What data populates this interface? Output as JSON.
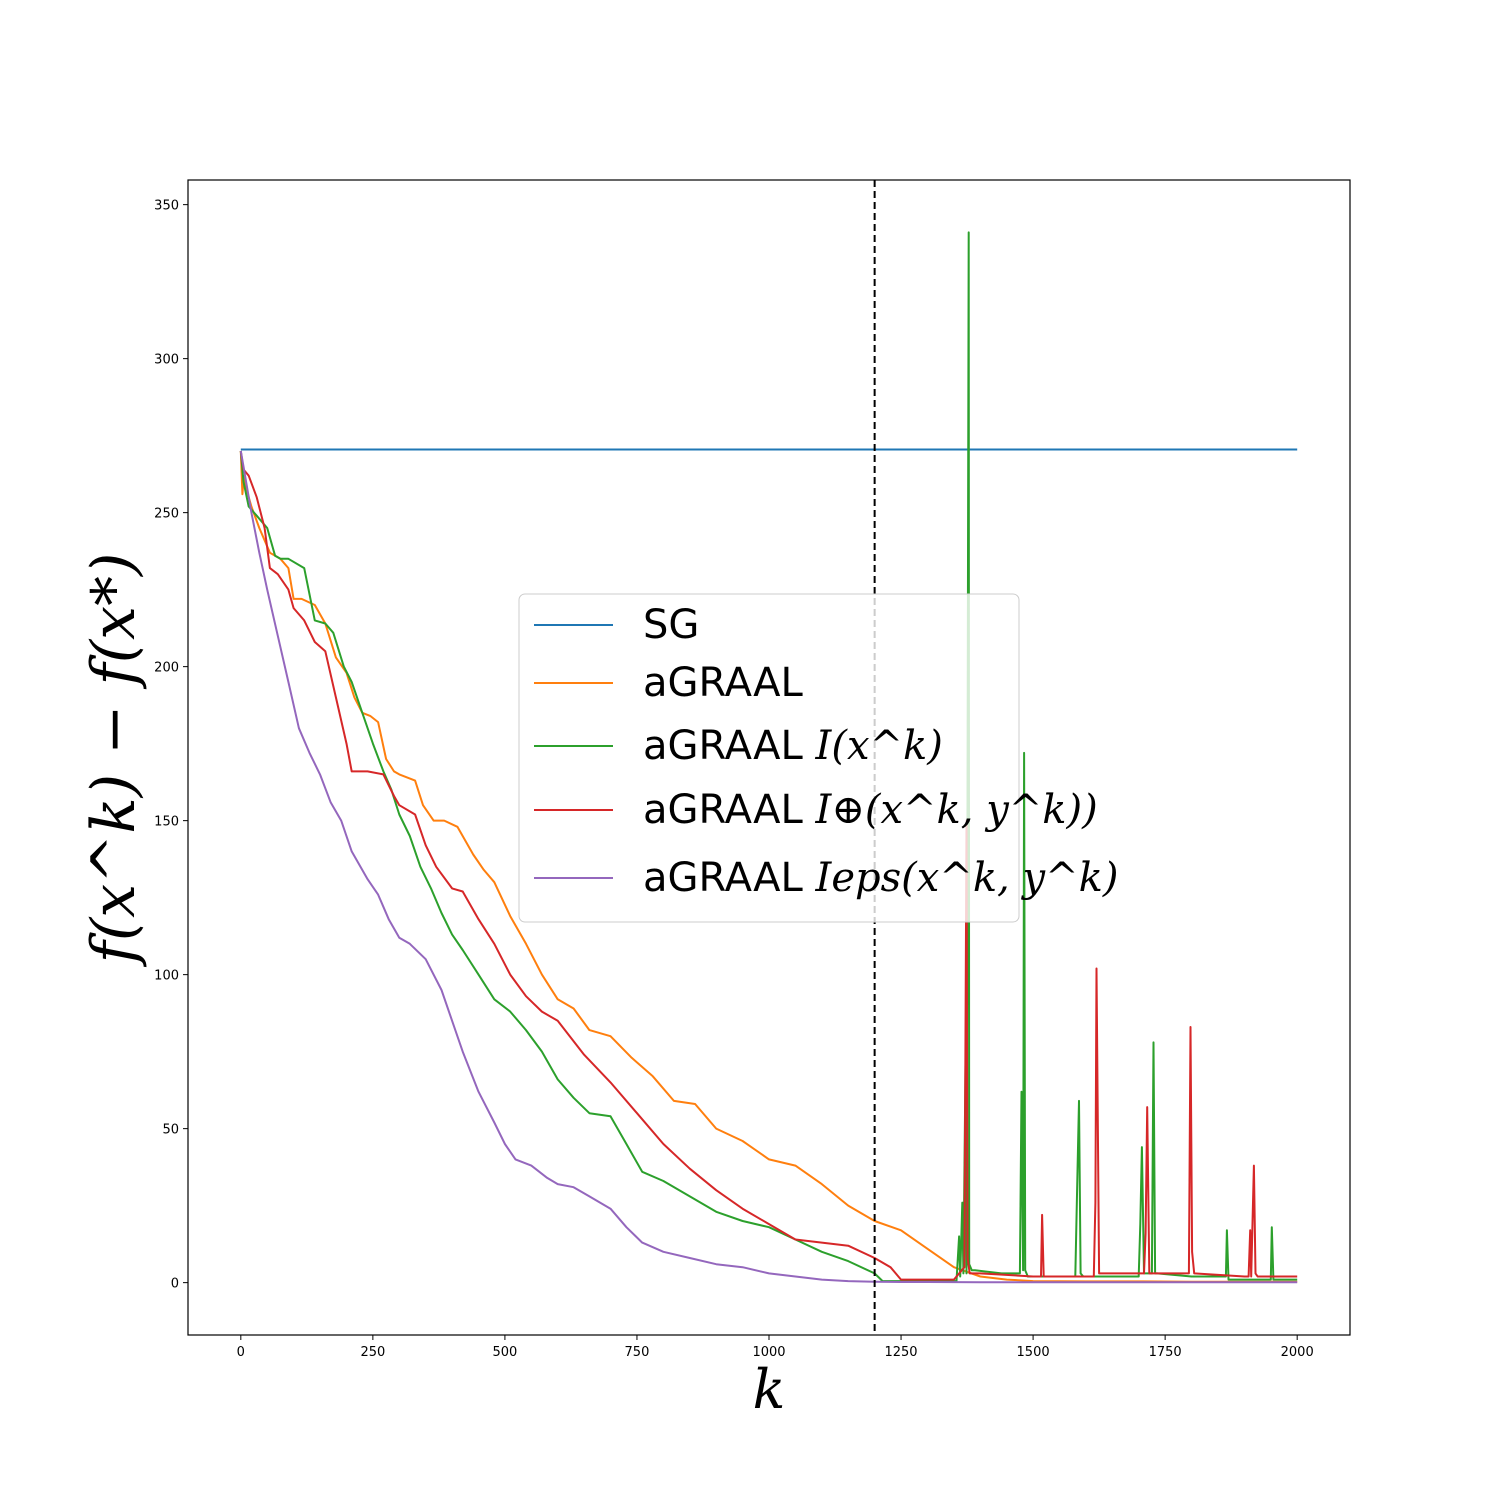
{
  "chart_data": {
    "type": "line",
    "title": "",
    "xlabel": "k",
    "ylabel": "f(x^k) − f(x*)",
    "xlim": [
      -100,
      2100
    ],
    "ylim": [
      -17,
      358
    ],
    "xticks": [
      0,
      250,
      500,
      750,
      1000,
      1250,
      1500,
      1750,
      2000
    ],
    "yticks": [
      0,
      50,
      100,
      150,
      200,
      250,
      300,
      350
    ],
    "xtick_labels": [
      "0",
      "250",
      "500",
      "750",
      "1000",
      "1250",
      "1500",
      "1750",
      "2000"
    ],
    "ytick_labels": [
      "0",
      "50",
      "100",
      "150",
      "200",
      "250",
      "300",
      "350"
    ],
    "vline": {
      "x": 1200,
      "style": "dashed",
      "color": "#000000"
    },
    "legend": {
      "placement": "center"
    },
    "series": [
      {
        "name": "SG",
        "legend": "SG",
        "color": "#1f77b4",
        "x": [
          0,
          2000
        ],
        "y": [
          270.5,
          270.5
        ]
      },
      {
        "name": "aGRAAL",
        "legend": "aGRAAL",
        "color": "#ff7f0e",
        "x": [
          0,
          3,
          6,
          10,
          20,
          35,
          55,
          75,
          90,
          100,
          115,
          140,
          160,
          180,
          200,
          215,
          230,
          245,
          260,
          275,
          290,
          300,
          330,
          345,
          365,
          385,
          410,
          440,
          460,
          480,
          510,
          540,
          570,
          600,
          630,
          660,
          700,
          740,
          780,
          820,
          860,
          900,
          950,
          1000,
          1050,
          1100,
          1150,
          1200,
          1250,
          1300,
          1350,
          1400,
          1450,
          1500,
          1600,
          1700,
          1800,
          1900,
          2000
        ],
        "y": [
          270,
          256,
          262,
          258,
          252,
          245,
          237,
          235,
          232,
          222,
          222,
          220,
          214,
          203,
          198,
          190,
          185,
          184,
          182,
          170,
          166,
          165,
          163,
          155,
          150,
          150,
          148,
          139,
          134,
          130,
          119,
          110,
          100,
          92,
          89,
          82,
          80,
          73,
          67,
          59,
          58,
          50,
          46,
          40,
          38,
          32,
          25,
          20,
          17,
          11,
          5,
          2,
          1,
          0.5,
          0.4,
          0.4,
          0.3,
          0.3,
          0.3
        ]
      },
      {
        "name": "aGRAAL I(x^k)",
        "legend": "aGRAAL ",
        "legend_math": "I(x^k)",
        "color": "#2ca02c",
        "x": [
          0,
          5,
          15,
          30,
          50,
          65,
          75,
          90,
          120,
          140,
          160,
          175,
          195,
          210,
          230,
          250,
          270,
          285,
          300,
          320,
          340,
          360,
          380,
          400,
          420,
          450,
          480,
          510,
          540,
          570,
          600,
          630,
          660,
          700,
          730,
          760,
          800,
          850,
          900,
          950,
          1000,
          1050,
          1100,
          1150,
          1200,
          1215,
          1250,
          1300,
          1355,
          1360,
          1362,
          1366,
          1368,
          1372,
          1374,
          1378,
          1379,
          1384,
          1390,
          1440,
          1475,
          1478,
          1481,
          1483,
          1485,
          1490,
          1540,
          1580,
          1583,
          1587,
          1590,
          1595,
          1700,
          1703,
          1706,
          1710,
          1725,
          1728,
          1731,
          1735,
          1800,
          1865,
          1867,
          1870,
          1950,
          1952,
          1955,
          2000
        ],
        "y": [
          270,
          260,
          252,
          249,
          245,
          236,
          235,
          235,
          232,
          215,
          214,
          211,
          200,
          195,
          185,
          175,
          166,
          160,
          152,
          145,
          135,
          128,
          120,
          113,
          108,
          100,
          92,
          88,
          82,
          75,
          66,
          60,
          55,
          54,
          45,
          36,
          33,
          28,
          23,
          20,
          18,
          14,
          10,
          7,
          3,
          0.5,
          0.5,
          0.5,
          0.5,
          15,
          2,
          26,
          3,
          71,
          3,
          341,
          6,
          4,
          4,
          3,
          3,
          62,
          4,
          172,
          4,
          2,
          2,
          2,
          27,
          59,
          3,
          2,
          2,
          19,
          44,
          3,
          3,
          78,
          3,
          3,
          2,
          2,
          17,
          1,
          1,
          18,
          1,
          1
        ]
      },
      {
        "name": "aGRAAL I⊕(x^k, y^k)",
        "legend": "aGRAAL ",
        "legend_math": "I⊕(x^k, y^k))",
        "color": "#d62728",
        "x": [
          0,
          5,
          15,
          30,
          45,
          55,
          70,
          90,
          100,
          120,
          140,
          160,
          180,
          200,
          210,
          240,
          270,
          290,
          300,
          330,
          350,
          370,
          400,
          420,
          450,
          480,
          510,
          540,
          570,
          600,
          650,
          700,
          750,
          800,
          850,
          900,
          950,
          1000,
          1050,
          1100,
          1150,
          1200,
          1230,
          1250,
          1300,
          1350,
          1370,
          1374,
          1376,
          1380,
          1400,
          1500,
          1515,
          1517,
          1520,
          1600,
          1615,
          1618,
          1620,
          1625,
          1710,
          1713,
          1716,
          1720,
          1795,
          1798,
          1801,
          1805,
          1900,
          1908,
          1911,
          1913,
          1918,
          1921,
          1925,
          2000
        ],
        "y": [
          270,
          264,
          262,
          255,
          245,
          232,
          230,
          225,
          219,
          215,
          208,
          205,
          190,
          175,
          166,
          166,
          165,
          158,
          155,
          152,
          142,
          135,
          128,
          127,
          118,
          110,
          100,
          93,
          88,
          85,
          74,
          65,
          55,
          45,
          37,
          30,
          24,
          19,
          14,
          13,
          12,
          8,
          5,
          1,
          1,
          1,
          5,
          150,
          8,
          3,
          3,
          2,
          2,
          22,
          2,
          2,
          2,
          26,
          102,
          3,
          3,
          16,
          57,
          3,
          3,
          83,
          10,
          3,
          2,
          2,
          17,
          2,
          38,
          3,
          2,
          2
        ]
      },
      {
        "name": "aGRAAL Ieps(x^k, y^k)",
        "legend": "aGRAAL ",
        "legend_math": "Ieps(x^k, y^k)",
        "color": "#9467bd",
        "x": [
          0,
          5,
          10,
          20,
          35,
          50,
          70,
          90,
          110,
          130,
          150,
          170,
          190,
          210,
          240,
          260,
          280,
          300,
          320,
          350,
          380,
          400,
          420,
          450,
          480,
          500,
          520,
          550,
          580,
          600,
          630,
          660,
          700,
          730,
          760,
          800,
          850,
          900,
          950,
          1000,
          1050,
          1100,
          1150,
          1200,
          1250,
          1300,
          1400,
          1500,
          2000
        ],
        "y": [
          270,
          265,
          260,
          250,
          237,
          225,
          210,
          195,
          180,
          172,
          165,
          156,
          150,
          140,
          131,
          126,
          118,
          112,
          110,
          105,
          95,
          85,
          75,
          62,
          52,
          45,
          40,
          38,
          34,
          32,
          31,
          28,
          24,
          18,
          13,
          10,
          8,
          6,
          5,
          3,
          2,
          1,
          0.5,
          0.3,
          0.2,
          0.2,
          0.1,
          0.1,
          0.1
        ]
      }
    ]
  }
}
